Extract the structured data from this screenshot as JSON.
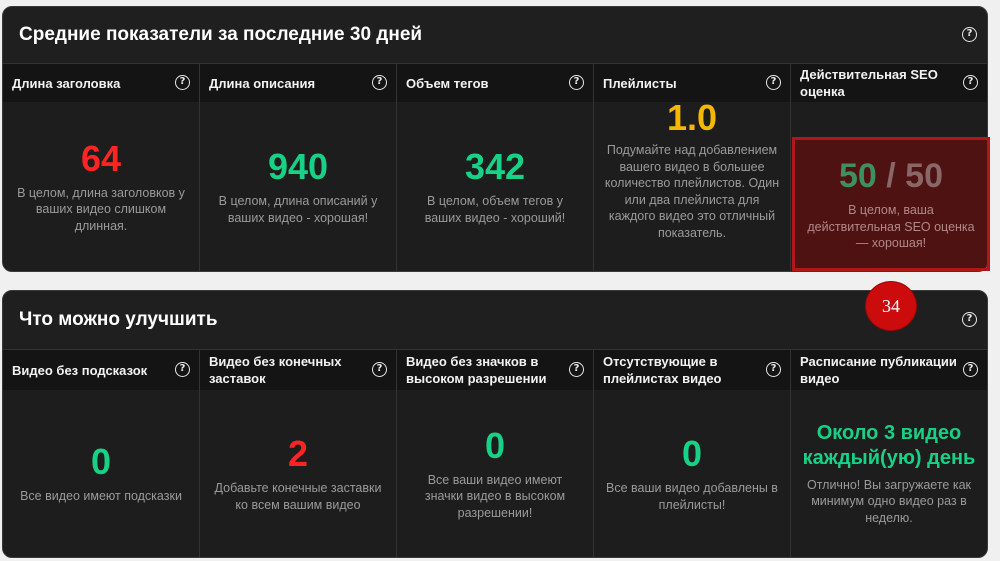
{
  "averages": {
    "title": "Средние показатели за последние 30 дней",
    "cards": [
      {
        "label": "Длина заголовка",
        "value": "64",
        "desc": "В целом, длина заголовков у ваших видео слишком длинная."
      },
      {
        "label": "Длина описания",
        "value": "940",
        "desc": "В целом, длина описаний у ваших видео - хорошая!"
      },
      {
        "label": "Объем тегов",
        "value": "342",
        "desc": "В целом, объем тегов у ваших видео - хороший!"
      },
      {
        "label": "Плейлисты",
        "value": "1.0",
        "desc": "Подумайте над добавлением вашего видео в большее количество плейлистов. Один или два плейлиста для каждого видео это отличный показатель."
      },
      {
        "label": "Действительная SEO оценка",
        "value": "50",
        "of": "/ 50",
        "desc": "В целом, ваша действительная SEO оценка — хорошая!"
      }
    ]
  },
  "improvements": {
    "title": "Что можно улучшить",
    "cards": [
      {
        "label": "Видео без подсказок",
        "value": "0",
        "desc": "Все видео имеют подсказки"
      },
      {
        "label": "Видео без конечных заставок",
        "value": "2",
        "desc": "Добавьте конечные заставки ко всем вашим видео"
      },
      {
        "label": "Видео без значков в высоком разрешении",
        "value": "0",
        "desc": "Все ваши видео имеют значки видео в высоком разрешении!"
      },
      {
        "label": "Отсутствующие в плейлистах видео",
        "value": "0",
        "desc": "Все ваши видео добавлены в плейлисты!"
      },
      {
        "label": "Расписание публикации видео",
        "value": "Около 3 видео каждый(ую) день",
        "desc": "Отлично! Вы загружаете как минимум одно видео раз в неделю."
      }
    ]
  },
  "help_symbol": "?",
  "step_badge": "34",
  "colors": {
    "bad": "#ff2424",
    "good": "#17d186",
    "warning": "#f5b700",
    "highlight_border": "#b01818",
    "badge": "#cc0c0c"
  }
}
